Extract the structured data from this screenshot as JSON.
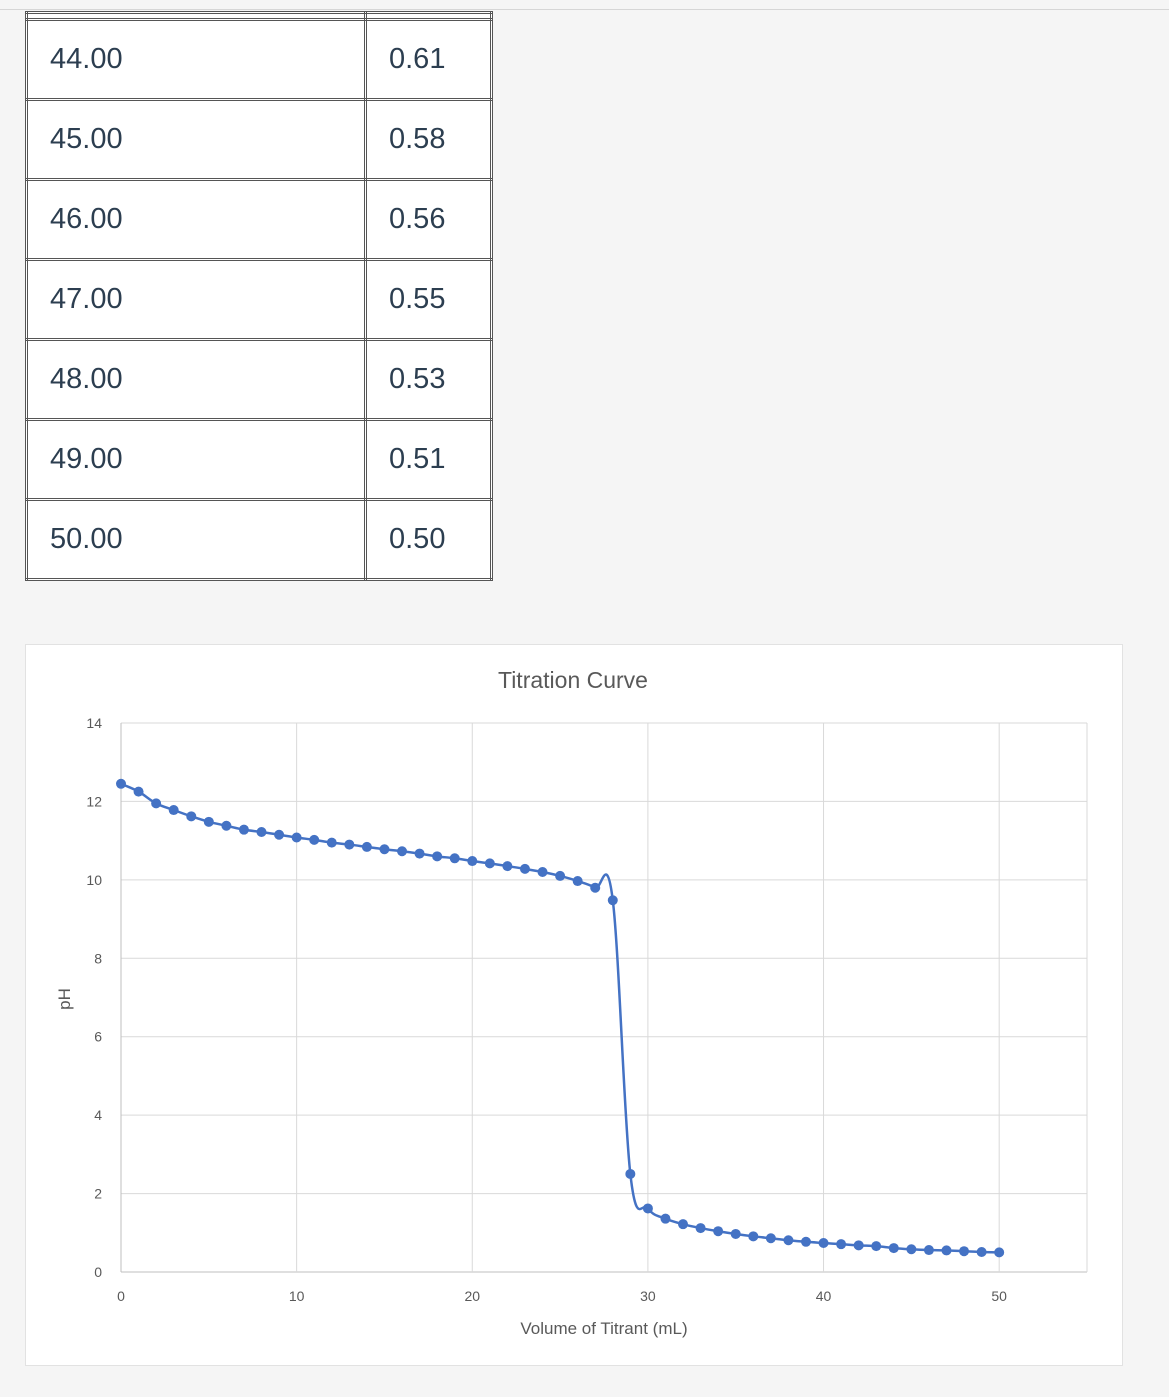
{
  "table": {
    "rows": [
      {
        "volume": "44.00",
        "ph": "0.61"
      },
      {
        "volume": "45.00",
        "ph": "0.58"
      },
      {
        "volume": "46.00",
        "ph": "0.56"
      },
      {
        "volume": "47.00",
        "ph": "0.55"
      },
      {
        "volume": "48.00",
        "ph": "0.53"
      },
      {
        "volume": "49.00",
        "ph": "0.51"
      },
      {
        "volume": "50.00",
        "ph": "0.50"
      }
    ]
  },
  "chart_data": {
    "type": "scatter",
    "title": "Titration Curve",
    "xlabel": "Volume of Titrant (mL)",
    "ylabel": "pH",
    "xlim": [
      0,
      55
    ],
    "ylim": [
      0,
      14
    ],
    "xticks": [
      0,
      10,
      20,
      30,
      40,
      50
    ],
    "yticks": [
      0,
      2,
      4,
      6,
      8,
      10,
      12,
      14
    ],
    "grid": true,
    "color": "#4472c4",
    "x": [
      0,
      1,
      2,
      3,
      4,
      5,
      6,
      7,
      8,
      9,
      10,
      11,
      12,
      13,
      14,
      15,
      16,
      17,
      18,
      19,
      20,
      21,
      22,
      23,
      24,
      25,
      26,
      27,
      28,
      29,
      30,
      31,
      32,
      33,
      34,
      35,
      36,
      37,
      38,
      39,
      40,
      41,
      42,
      43,
      44,
      45,
      46,
      47,
      48,
      49,
      50
    ],
    "y": [
      12.45,
      12.25,
      11.95,
      11.78,
      11.62,
      11.48,
      11.38,
      11.28,
      11.22,
      11.15,
      11.08,
      11.02,
      10.95,
      10.9,
      10.84,
      10.78,
      10.73,
      10.67,
      10.6,
      10.55,
      10.48,
      10.42,
      10.35,
      10.28,
      10.2,
      10.1,
      9.97,
      9.8,
      9.48,
      2.5,
      1.62,
      1.36,
      1.22,
      1.12,
      1.04,
      0.97,
      0.91,
      0.86,
      0.81,
      0.77,
      0.74,
      0.71,
      0.68,
      0.66,
      0.61,
      0.58,
      0.56,
      0.55,
      0.53,
      0.51,
      0.5
    ]
  }
}
